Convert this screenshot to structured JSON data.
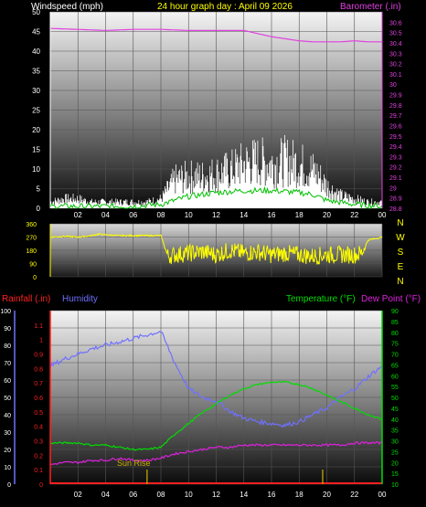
{
  "header": {
    "left_title": "Windspeed (mph)",
    "center_title": "24 hour graph day : April 09 2026",
    "right_title": "Barometer (.in)"
  },
  "colors": {
    "background": "#000000",
    "wind_gust": "#ffffff",
    "wind_avg": "#00c000",
    "barometer": "#e040e0",
    "direction": "#ffff00",
    "temperature": "#00dd00",
    "dew_point": "#dd22dd",
    "humidity": "#7070ff",
    "rainfall": "#ff2020",
    "sunrise": "#d0b000"
  },
  "x_axis": {
    "ticks": [
      "02",
      "04",
      "06",
      "08",
      "10",
      "12",
      "14",
      "16",
      "18",
      "20",
      "22",
      "00"
    ]
  },
  "chart_data": [
    {
      "id": "wind-baro",
      "type": "line",
      "title": "Windspeed (mph)",
      "ylabel": "Windspeed (mph)",
      "y2label": "Barometer (.in)",
      "ylim": [
        0,
        50
      ],
      "y_ticks": [
        0,
        5,
        10,
        15,
        20,
        25,
        30,
        35,
        40,
        45,
        50
      ],
      "y2lim": [
        28.8,
        30.7
      ],
      "y2_ticks": [
        "28.8",
        "28.9",
        "29",
        "29.1",
        "29.2",
        "29.3",
        "29.4",
        "29.5",
        "29.6",
        "29.7",
        "29.8",
        "29.9",
        "30",
        "30.1",
        "30.2",
        "30.3",
        "30.4",
        "30.5",
        "30.6"
      ],
      "grid": true,
      "series": [
        {
          "key": "gust",
          "color": "#ffffff",
          "axis": "left",
          "x": [
            0,
            1,
            2,
            3,
            4,
            5,
            6,
            7,
            8,
            8.5,
            9,
            10,
            11,
            12,
            13,
            14,
            15,
            16,
            17,
            18,
            19,
            19.5,
            20,
            21,
            22,
            23,
            24
          ],
          "y": [
            2,
            3,
            3,
            2,
            2,
            2,
            2,
            2,
            3,
            6,
            9,
            10,
            10,
            11,
            12,
            14,
            15,
            14,
            15,
            14,
            12,
            10,
            7,
            4,
            3,
            2,
            2
          ]
        },
        {
          "key": "avg",
          "color": "#00c000",
          "axis": "left",
          "x": [
            0,
            2,
            4,
            6,
            8,
            9,
            10,
            12,
            14,
            16,
            18,
            19,
            20,
            22,
            24
          ],
          "y": [
            0.5,
            0.5,
            0.5,
            0.5,
            1,
            2,
            3,
            4,
            4.5,
            4.5,
            4,
            3.5,
            2,
            1,
            0.5
          ]
        },
        {
          "key": "baro",
          "color": "#e040e0",
          "axis": "right",
          "x": [
            0,
            2,
            4,
            6,
            8,
            10,
            12,
            14,
            15,
            16,
            17,
            18,
            19,
            20,
            21,
            22,
            23,
            24
          ],
          "y": [
            30.54,
            30.53,
            30.52,
            30.53,
            30.53,
            30.52,
            30.52,
            30.52,
            30.49,
            30.46,
            30.44,
            30.42,
            30.41,
            30.41,
            30.41,
            30.42,
            30.41,
            30.41
          ]
        }
      ]
    },
    {
      "id": "wind-direction",
      "type": "line",
      "ylim": [
        0,
        360
      ],
      "y_ticks": [
        0,
        90,
        180,
        270,
        360
      ],
      "right_labels": [
        "N",
        "W",
        "S",
        "E",
        "N"
      ],
      "grid": true,
      "series": [
        {
          "key": "dir",
          "color": "#ffff00",
          "x": [
            0,
            1,
            2,
            3,
            3.5,
            4,
            5,
            6,
            7,
            8,
            8.5,
            9,
            10,
            11,
            12,
            13,
            14,
            15,
            16,
            17,
            18,
            19,
            20,
            21,
            22,
            22.5,
            23,
            24
          ],
          "y": [
            270,
            275,
            270,
            280,
            290,
            285,
            280,
            280,
            280,
            280,
            140,
            150,
            160,
            170,
            150,
            180,
            160,
            170,
            150,
            160,
            150,
            140,
            150,
            150,
            150,
            160,
            250,
            270
          ]
        }
      ]
    },
    {
      "id": "temp-humidity-rain",
      "type": "line",
      "title": "Humidity",
      "ylabel": "Rainfall (.in)",
      "y_humidity_lim": [
        0,
        100
      ],
      "y_humidity_ticks": [
        0,
        10,
        20,
        30,
        40,
        50,
        60,
        70,
        80,
        90,
        100
      ],
      "y_rain_lim": [
        0,
        1.2
      ],
      "y_rain_ticks": [
        "0",
        "0.1",
        "0.2",
        "0.3",
        "0.4",
        "0.5",
        "0.6",
        "0.7",
        "0.8",
        "0.9",
        "1",
        "1.1"
      ],
      "y2label_temp": "Temperature (°F)",
      "y2label_dew": "Dew Point (°F)",
      "y2lim": [
        10,
        90
      ],
      "y2_ticks": [
        10,
        15,
        20,
        25,
        30,
        35,
        40,
        45,
        50,
        55,
        60,
        65,
        70,
        75,
        80,
        85,
        90
      ],
      "annotation": "Sun Rise",
      "sunrise_hour": 7,
      "sunset_hour": 19.7,
      "grid": true,
      "series": [
        {
          "key": "humidity",
          "color": "#7070ff",
          "x": [
            0,
            1,
            2,
            3,
            4,
            5,
            6,
            7,
            8,
            9,
            10,
            11,
            12,
            13,
            14,
            15,
            16,
            17,
            18,
            19,
            20,
            21,
            22,
            23,
            24
          ],
          "y": [
            68,
            72,
            75,
            78,
            80,
            82,
            84,
            86,
            88,
            70,
            55,
            50,
            48,
            42,
            38,
            36,
            35,
            34,
            36,
            40,
            44,
            50,
            55,
            62,
            68
          ]
        },
        {
          "key": "temperature",
          "color": "#00dd00",
          "x": [
            0,
            1,
            2,
            3,
            4,
            5,
            6,
            7,
            8,
            9,
            10,
            11,
            12,
            13,
            14,
            15,
            16,
            17,
            18,
            19,
            20,
            21,
            22,
            23,
            24
          ],
          "y": [
            29,
            29,
            29,
            28,
            28,
            27,
            26,
            26,
            27,
            33,
            38,
            43,
            47,
            51,
            54,
            56,
            57,
            57,
            56,
            54,
            51,
            48,
            45,
            42,
            40
          ]
        },
        {
          "key": "dew",
          "color": "#dd22dd",
          "x": [
            0,
            1,
            2,
            3,
            4,
            5,
            6,
            7,
            8,
            9,
            10,
            11,
            12,
            13,
            14,
            15,
            16,
            17,
            18,
            19,
            20,
            21,
            22,
            23,
            24
          ],
          "y": [
            19,
            20,
            20,
            21,
            21,
            22,
            21,
            21,
            22,
            24,
            25,
            26,
            27,
            27,
            28,
            28,
            28,
            28,
            28,
            28,
            28,
            28,
            29,
            29,
            29
          ]
        },
        {
          "key": "rain",
          "color": "#ff2020",
          "x": [
            0,
            24
          ],
          "y": [
            0,
            0
          ]
        }
      ]
    }
  ],
  "labels": {
    "p3_rain": "Rainfall (.in)",
    "p3_humidity": "Humidity",
    "p3_temp": "Temperature (°F)",
    "p3_dew": "Dew Point (°F)",
    "sunrise": "Sun Rise"
  }
}
